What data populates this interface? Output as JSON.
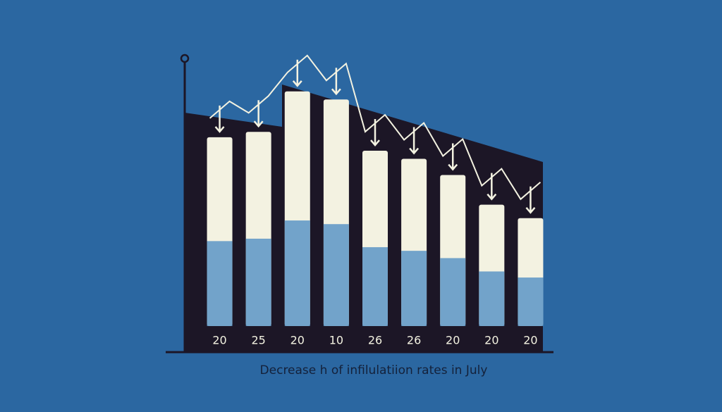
{
  "chart_data": {
    "type": "bar",
    "title": "Decrease h of infilulatiion rates in July",
    "categories": [
      "20",
      "25",
      "20",
      "10",
      "26",
      "26",
      "20",
      "20",
      "20"
    ],
    "values": [
      70,
      72,
      87,
      84,
      65,
      62,
      56,
      45,
      40
    ],
    "color": "#f3f2e1",
    "ylim": [
      0,
      100
    ]
  }
}
